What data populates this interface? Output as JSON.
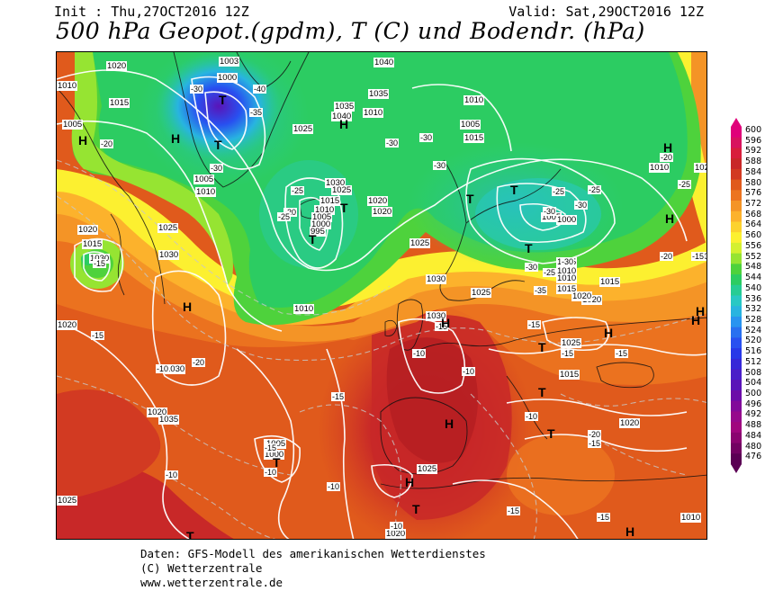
{
  "header": {
    "init": "Init : Thu,27OCT2016 12Z",
    "valid": "Valid: Sat,29OCT2016 12Z",
    "title": "500 hPa Geopot.(gpdm), T (C) und Bodendr. (hPa)"
  },
  "footer": {
    "line1": "Daten: GFS-Modell des amerikanischen Wetterdienstes",
    "line2": "(C) Wetterzentrale",
    "line3": "www.wetterzentrale.de"
  },
  "legend": {
    "levels": [
      "600",
      "596",
      "592",
      "588",
      "584",
      "580",
      "576",
      "572",
      "568",
      "564",
      "560",
      "556",
      "552",
      "548",
      "544",
      "540",
      "536",
      "532",
      "528",
      "524",
      "520",
      "516",
      "512",
      "508",
      "504",
      "500",
      "496",
      "492",
      "488",
      "484",
      "480",
      "476"
    ],
    "colors": [
      "#e0007a",
      "#d8125e",
      "#d81e3c",
      "#c82828",
      "#d23a22",
      "#e05a1c",
      "#ec7420",
      "#f49426",
      "#fcb22c",
      "#fcd22e",
      "#fcf030",
      "#d4f030",
      "#96e432",
      "#4ed23c",
      "#2ccc62",
      "#26cc94",
      "#28c8c4",
      "#28b4e0",
      "#2894f0",
      "#2870f0",
      "#2850f0",
      "#2838e8",
      "#3628d8",
      "#4a1ec8",
      "#5a14b8",
      "#6c0ca8",
      "#820a9a",
      "#96088c",
      "#a0067e",
      "#8a0470",
      "#720262",
      "#5a0054"
    ]
  },
  "map": {
    "pressure_labels": [
      "1020",
      "1010",
      "1003",
      "1000",
      "1040",
      "1035",
      "1015",
      "1010",
      "1005",
      "1005",
      "1010",
      "1015",
      "1025",
      "1040",
      "1035",
      "1030",
      "1025",
      "1015",
      "1010",
      "1005",
      "1000",
      "995",
      "1020",
      "1020",
      "1025",
      "1030",
      "1030",
      "1020",
      "1010",
      "1015",
      "1015",
      "1010",
      "1005",
      "1020",
      "1025",
      "1030",
      "1030",
      "1020",
      "1025",
      "1010",
      "1005",
      "1000",
      "1005",
      "1010",
      "1015",
      "1020",
      "1025",
      "1025",
      "1020",
      "1015",
      "1010",
      "1020",
      "1025",
      "1020",
      "1020",
      "1015",
      "1035",
      "1030",
      "1005",
      "1010",
      "1000"
    ],
    "temperature_labels": [
      "-30",
      "-35",
      "-40",
      "-20",
      "-30",
      "-25",
      "-20",
      "-25",
      "-30",
      "-30",
      "-30",
      "-25",
      "-30",
      "-20",
      "-15",
      "-25",
      "-30",
      "-25",
      "-20",
      "-35",
      "-30",
      "-30",
      "-25",
      "-20",
      "-20",
      "-15",
      "-20",
      "-15",
      "-15",
      "-10",
      "-10",
      "-15",
      "-15",
      "-20",
      "-15",
      "-10",
      "-10",
      "-15",
      "-10",
      "-10",
      "-15",
      "-10",
      "-15",
      "-15",
      "-10",
      "-15",
      "-15"
    ],
    "highs_lows": [
      "H",
      "T",
      "T",
      "H",
      "T",
      "T",
      "H",
      "T",
      "T",
      "T",
      "H",
      "H",
      "H",
      "T",
      "H",
      "H",
      "T",
      "H",
      "T",
      "T",
      "H",
      "T",
      "T",
      "H",
      "H",
      "H"
    ]
  }
}
